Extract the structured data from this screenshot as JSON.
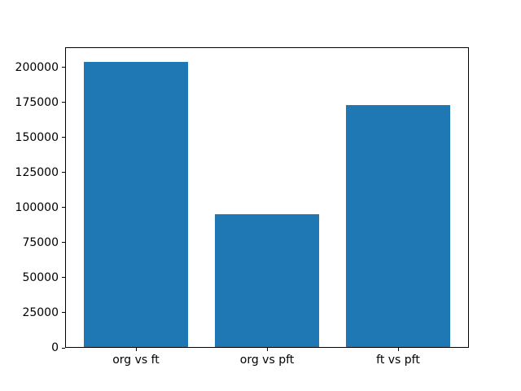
{
  "chart_data": {
    "type": "bar",
    "title": "",
    "xlabel": "",
    "ylabel": "",
    "categories": [
      "org vs ft",
      "org vs pft",
      "ft vs pft"
    ],
    "values": [
      204000,
      95000,
      173000
    ],
    "yticks": [
      0,
      25000,
      50000,
      75000,
      100000,
      125000,
      150000,
      175000,
      200000
    ],
    "ylim": [
      0,
      214200
    ],
    "xlim": [
      -0.54,
      2.54
    ],
    "bar_width": 0.8,
    "bar_color": "#1f77b4",
    "axis_color": "#000000",
    "background_color": "#ffffff",
    "grid": "off",
    "legend": "none"
  }
}
